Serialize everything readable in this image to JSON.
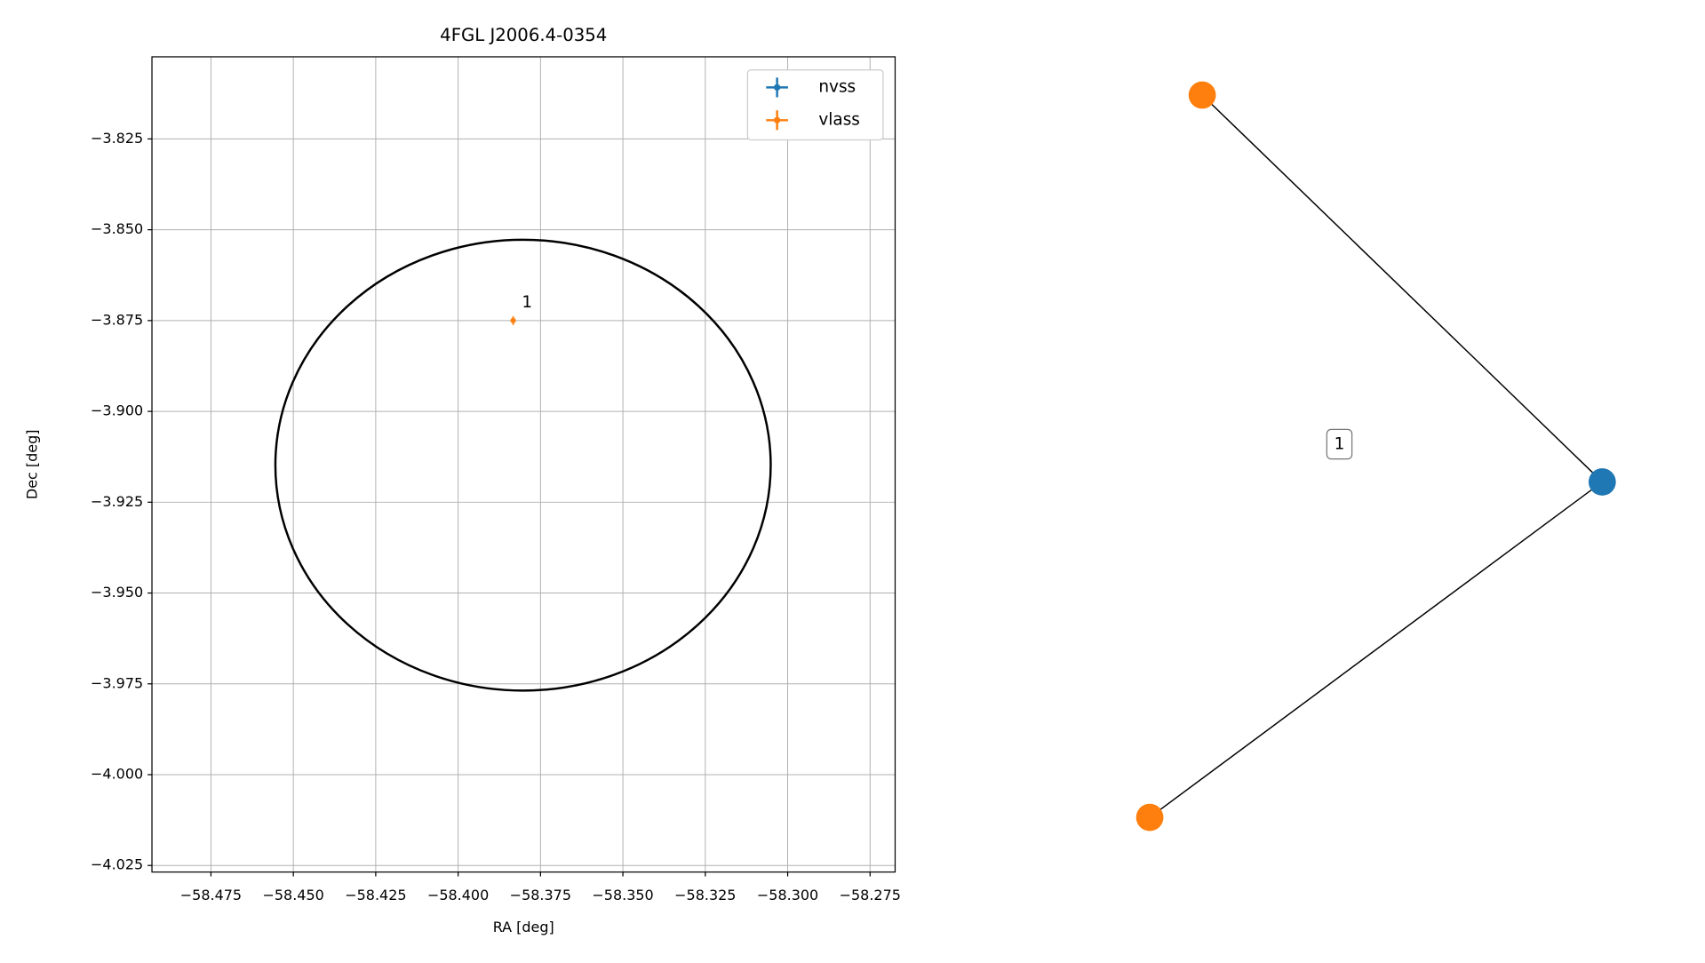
{
  "chart_data": [
    {
      "type": "scatter",
      "title": "4FGL J2006.4-0354",
      "xlabel": "RA [deg]",
      "ylabel": "Dec [deg]",
      "xlim": [
        -58.4929,
        -58.2674
      ],
      "ylim": [
        -4.0268,
        -3.8024
      ],
      "xticks": [
        {
          "value": -58.475,
          "label": "−58.475"
        },
        {
          "value": -58.45,
          "label": "−58.450"
        },
        {
          "value": -58.425,
          "label": "−58.425"
        },
        {
          "value": -58.4,
          "label": "−58.400"
        },
        {
          "value": -58.375,
          "label": "−58.375"
        },
        {
          "value": -58.35,
          "label": "−58.350"
        },
        {
          "value": -58.325,
          "label": "−58.325"
        },
        {
          "value": -58.3,
          "label": "−58.300"
        },
        {
          "value": -58.275,
          "label": "−58.275"
        }
      ],
      "yticks": [
        {
          "value": -3.825,
          "label": "−3.825"
        },
        {
          "value": -3.85,
          "label": "−3.850"
        },
        {
          "value": -3.875,
          "label": "−3.875"
        },
        {
          "value": -3.9,
          "label": "−3.900"
        },
        {
          "value": -3.925,
          "label": "−3.925"
        },
        {
          "value": -3.95,
          "label": "−3.950"
        },
        {
          "value": -3.975,
          "label": "−3.975"
        },
        {
          "value": -4.0,
          "label": "−4.000"
        },
        {
          "value": -4.025,
          "label": "−4.025"
        }
      ],
      "grid": true,
      "legend": "upper right",
      "series": [
        {
          "name": "nvss",
          "color": "#1f77b4",
          "x": [],
          "y": [],
          "yerr": [],
          "point_labels": []
        },
        {
          "name": "vlass",
          "color": "#ff7f0e",
          "x": [
            -58.3833
          ],
          "y": [
            -3.875
          ],
          "yerr": [
            0.0012
          ],
          "point_labels": [
            "1"
          ]
        }
      ],
      "region": {
        "center": [
          -58.3803,
          -3.9148
        ],
        "width": 0.1503,
        "height": 0.1241,
        "color": "#000000"
      }
    },
    {
      "type": "network",
      "nodes": [
        {
          "color": "#ff7f0e"
        },
        {
          "color": "#1f77b4"
        },
        {
          "color": "#ff7f0e"
        }
      ],
      "edges": [
        [
          0,
          1
        ],
        [
          2,
          1
        ]
      ],
      "label": "1"
    }
  ]
}
